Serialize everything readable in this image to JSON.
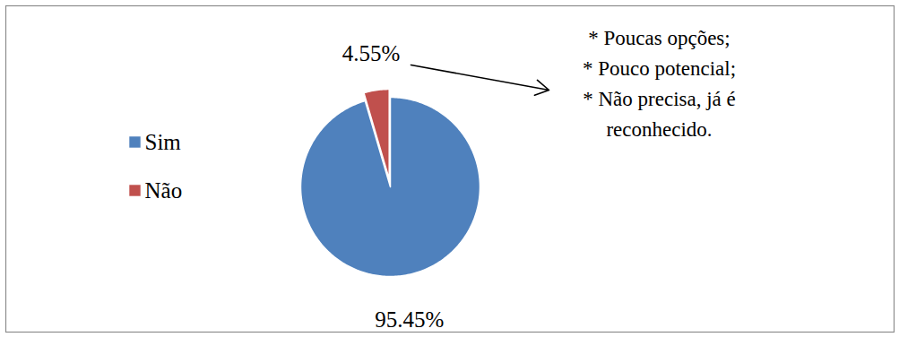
{
  "chart_data": {
    "type": "pie",
    "categories": [
      "Sim",
      "Não"
    ],
    "values": [
      95.45,
      4.55
    ],
    "value_labels": [
      "95.45%",
      "4.55%"
    ],
    "colors": [
      "#4f81bd",
      "#c0504d"
    ],
    "data_labels": true,
    "legend": "left",
    "annotations": [
      "* Poucas opções;",
      "* Pouco potencial;",
      "* Não precisa, já é",
      "reconhecido."
    ]
  }
}
